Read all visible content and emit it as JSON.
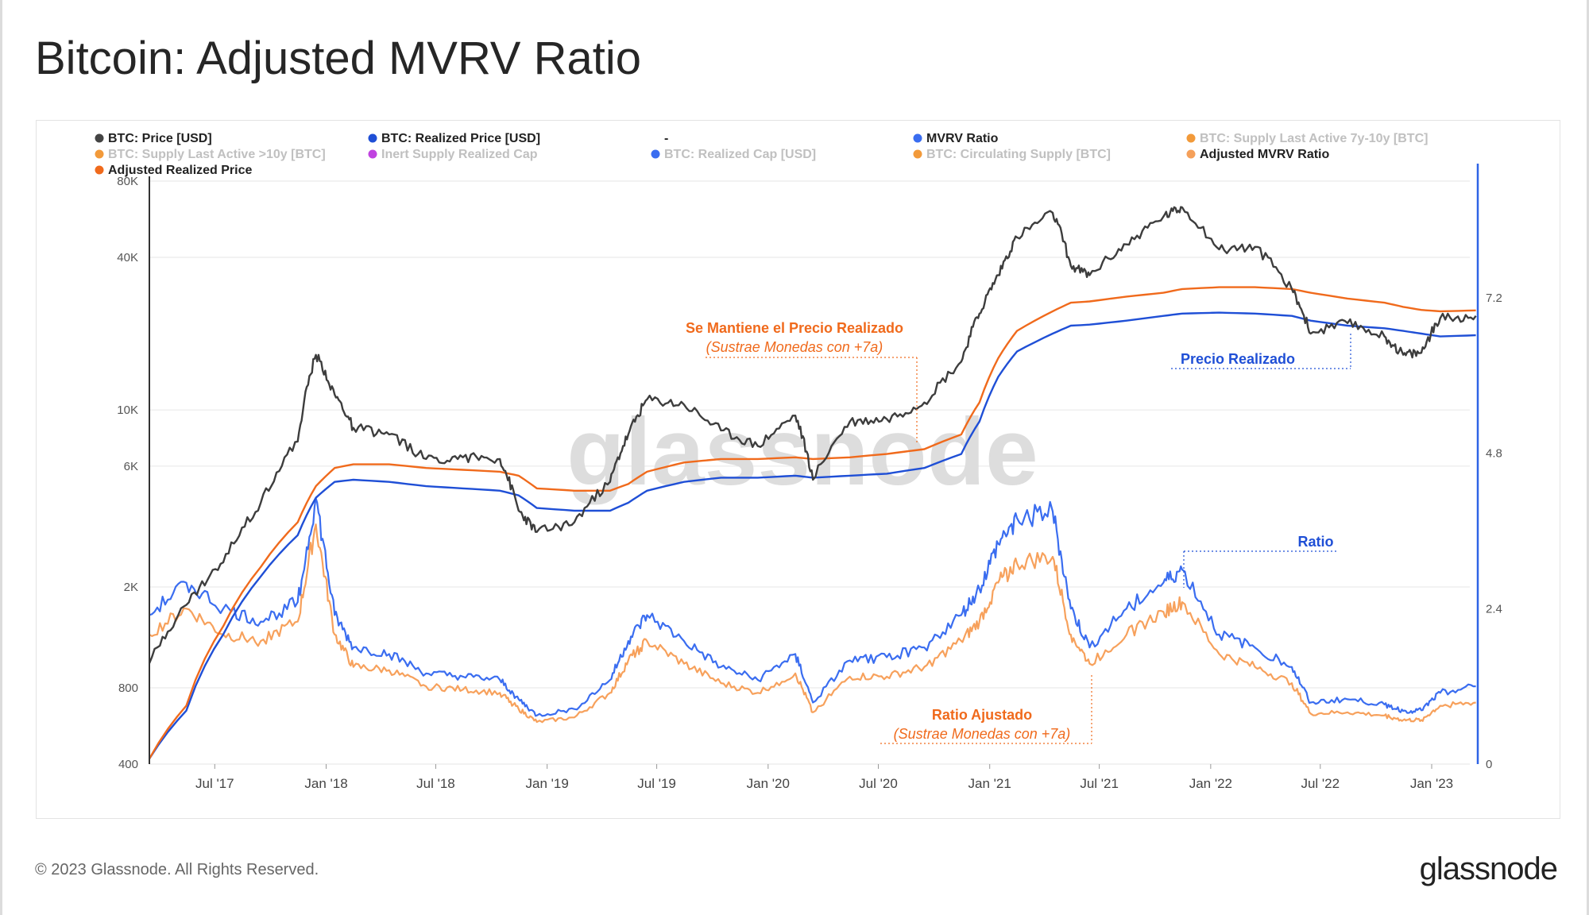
{
  "page": {
    "title": "Bitcoin: Adjusted MVRV Ratio",
    "copyright": "© 2023 Glassnode. All Rights Reserved.",
    "logo": "glassnode",
    "watermark": "glassnode"
  },
  "legend": [
    {
      "label": "BTC: Price [USD]",
      "color": "#444444",
      "active": true
    },
    {
      "label": "BTC: Realized Price [USD]",
      "color": "#1f4fd6",
      "active": true
    },
    {
      "label": "-",
      "color": null,
      "active": true
    },
    {
      "label": "MVRV Ratio",
      "color": "#3a6df0",
      "active": true
    },
    {
      "label": "BTC: Supply Last Active 7y-10y [BTC]",
      "color": "#f29a3a",
      "active": false
    },
    {
      "label": "BTC: Supply Last Active >10y [BTC]",
      "color": "#f29a3a",
      "active": false
    },
    {
      "label": "Inert Supply Realized Cap",
      "color": "#c043e0",
      "active": false
    },
    {
      "label": "BTC: Realized Cap [USD]",
      "color": "#3a6df0",
      "active": false
    },
    {
      "label": "BTC: Circulating Supply [BTC]",
      "color": "#f29a3a",
      "active": false
    },
    {
      "label": "Adjusted MVRV Ratio",
      "color": "#f5a05a",
      "active": true
    },
    {
      "label": "Adjusted Realized Price",
      "color": "#f06a1c",
      "active": true
    }
  ],
  "annotations": {
    "realized_hold_title": "Se Mantiene el Precio Realizado",
    "realized_hold_sub": "(Sustrae Monedas con +7a)",
    "realized_price": "Precio Realizado",
    "ratio": "Ratio",
    "ratio_adj_title": "Ratio Ajustado",
    "ratio_adj_sub": "(Sustrae Monedas con +7a)"
  },
  "colors": {
    "price": "#3d3d3d",
    "realized": "#1f4fd6",
    "adj_realized": "#f06a1c",
    "mvrv": "#3a6df0",
    "adj_mvrv": "#f7a15c",
    "axis_right": "#2f64e6",
    "grid": "#e6e6e6",
    "ann_orange": "#f06a1c",
    "ann_blue": "#1f4fd6"
  },
  "chart_data": {
    "type": "line",
    "title": "Bitcoin: Adjusted MVRV Ratio",
    "x_ticks": [
      "Jul '17",
      "Jan '18",
      "Jul '18",
      "Jan '19",
      "Jul '19",
      "Jan '20",
      "Jul '20",
      "Jan '21",
      "Jul '21",
      "Jan '22",
      "Jul '22",
      "Jan '23"
    ],
    "x_range": [
      "2017-03-15",
      "2023-03-05"
    ],
    "y_left": {
      "scale": "log",
      "ticks": [
        "400",
        "800",
        "2K",
        "6K",
        "10K",
        "40K",
        "80K"
      ],
      "tick_values": [
        400,
        800,
        2000,
        6000,
        10000,
        40000,
        80000
      ]
    },
    "y_right": {
      "scale": "linear",
      "ticks": [
        "0",
        "2.4",
        "4.8",
        "7.2"
      ],
      "tick_values": [
        0,
        2.4,
        4.8,
        7.2
      ]
    },
    "x": [
      "2017-03",
      "2017-05",
      "2017-07",
      "2017-09",
      "2017-11",
      "2017-12",
      "2018-01",
      "2018-02",
      "2018-04",
      "2018-06",
      "2018-08",
      "2018-10",
      "2018-11",
      "2018-12",
      "2019-02",
      "2019-04",
      "2019-05",
      "2019-06",
      "2019-08",
      "2019-10",
      "2019-12",
      "2020-02",
      "2020-03",
      "2020-05",
      "2020-07",
      "2020-09",
      "2020-11",
      "2020-12",
      "2021-01",
      "2021-02",
      "2021-04",
      "2021-05",
      "2021-06",
      "2021-08",
      "2021-10",
      "2021-11",
      "2022-01",
      "2022-03",
      "2022-05",
      "2022-06",
      "2022-08",
      "2022-10",
      "2022-11",
      "2022-12",
      "2023-01",
      "2023-03"
    ],
    "series": [
      {
        "name": "BTC: Price [USD]",
        "axis": "left",
        "values": [
          1000,
          1700,
          2500,
          4300,
          7500,
          16500,
          11500,
          8500,
          8000,
          6400,
          6500,
          6400,
          4000,
          3300,
          3600,
          5200,
          8000,
          11000,
          10500,
          8300,
          7200,
          9500,
          5300,
          9000,
          9200,
          10700,
          15500,
          24000,
          34000,
          48000,
          60000,
          37000,
          34000,
          45000,
          58000,
          63000,
          43000,
          44000,
          30000,
          20000,
          22000,
          19500,
          16500,
          16800,
          23000,
          23500
        ]
      },
      {
        "name": "BTC: Realized Price [USD]",
        "axis": "left",
        "values": [
          420,
          650,
          1300,
          2200,
          3200,
          4500,
          5200,
          5300,
          5200,
          5000,
          4900,
          4800,
          4600,
          4100,
          4000,
          4000,
          4300,
          4800,
          5200,
          5400,
          5400,
          5500,
          5400,
          5500,
          5600,
          5900,
          6700,
          9000,
          13500,
          17000,
          20000,
          21500,
          21700,
          22500,
          23500,
          24000,
          24200,
          24000,
          23500,
          22500,
          21500,
          21000,
          20500,
          20000,
          19500,
          19700
        ]
      },
      {
        "name": "MVRV Ratio",
        "axis": "right",
        "values": [
          2.3,
          2.8,
          2.4,
          2.2,
          2.5,
          4.1,
          2.3,
          1.8,
          1.7,
          1.4,
          1.35,
          1.3,
          1.0,
          0.75,
          0.85,
          1.3,
          1.9,
          2.3,
          1.9,
          1.5,
          1.3,
          1.7,
          0.95,
          1.6,
          1.65,
          1.8,
          2.3,
          2.7,
          3.4,
          3.8,
          3.9,
          2.4,
          1.8,
          2.4,
          2.8,
          3.0,
          2.0,
          1.8,
          1.5,
          0.95,
          1.0,
          0.92,
          0.82,
          0.83,
          1.1,
          1.2
        ]
      },
      {
        "name": "Adjusted MVRV Ratio",
        "axis": "right",
        "values": [
          2.0,
          2.4,
          2.0,
          1.9,
          2.2,
          3.7,
          2.0,
          1.5,
          1.45,
          1.2,
          1.15,
          1.1,
          0.85,
          0.65,
          0.72,
          1.1,
          1.6,
          1.9,
          1.55,
          1.25,
          1.1,
          1.4,
          0.8,
          1.35,
          1.35,
          1.5,
          1.9,
          2.2,
          2.8,
          3.1,
          3.2,
          2.0,
          1.55,
          2.0,
          2.35,
          2.5,
          1.7,
          1.5,
          1.25,
          0.78,
          0.8,
          0.75,
          0.68,
          0.68,
          0.9,
          0.95
        ]
      },
      {
        "name": "Adjusted Realized Price",
        "axis": "left",
        "values": [
          420,
          680,
          1400,
          2400,
          3600,
          5000,
          5900,
          6100,
          6100,
          5900,
          5800,
          5700,
          5500,
          4900,
          4800,
          4800,
          5100,
          5700,
          6200,
          6400,
          6400,
          6500,
          6400,
          6500,
          6700,
          7000,
          8000,
          10700,
          16000,
          20500,
          24500,
          26500,
          26800,
          28000,
          29000,
          30000,
          30500,
          30500,
          30000,
          29000,
          27500,
          26500,
          25500,
          24800,
          24500,
          24700
        ]
      }
    ]
  }
}
